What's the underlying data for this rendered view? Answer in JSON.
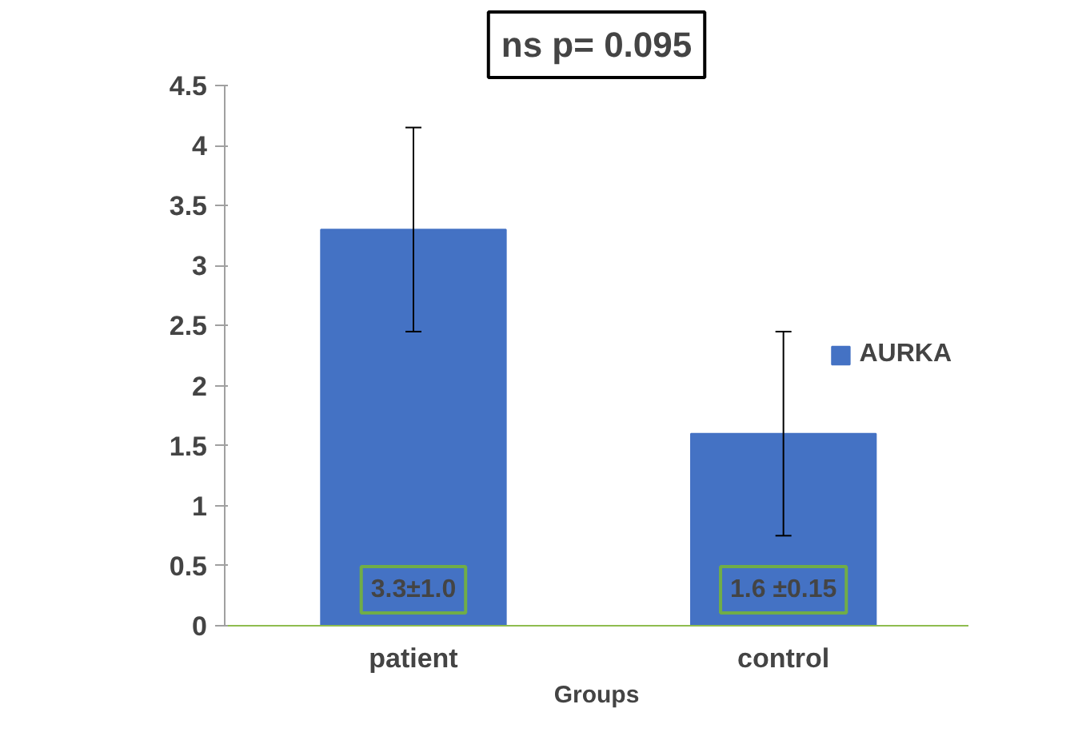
{
  "chart_data": {
    "type": "bar",
    "categories": [
      "patient",
      "control"
    ],
    "series": [
      {
        "name": "AURKA",
        "color": "#4472c4",
        "values": [
          3.3,
          1.6
        ],
        "errors": [
          [
            2.45,
            4.15
          ],
          [
            0.75,
            2.45
          ]
        ],
        "value_labels": [
          "3.3±1.0",
          "1.6 ±0.15"
        ]
      }
    ],
    "xlabel": "Groups",
    "annotations": [
      "ns p= 0.095"
    ],
    "ylim": [
      0,
      4.5
    ],
    "yticks": [
      0,
      0.5,
      1,
      1.5,
      2,
      2.5,
      3,
      3.5,
      4,
      4.5
    ],
    "grid": false,
    "legend": "right"
  }
}
